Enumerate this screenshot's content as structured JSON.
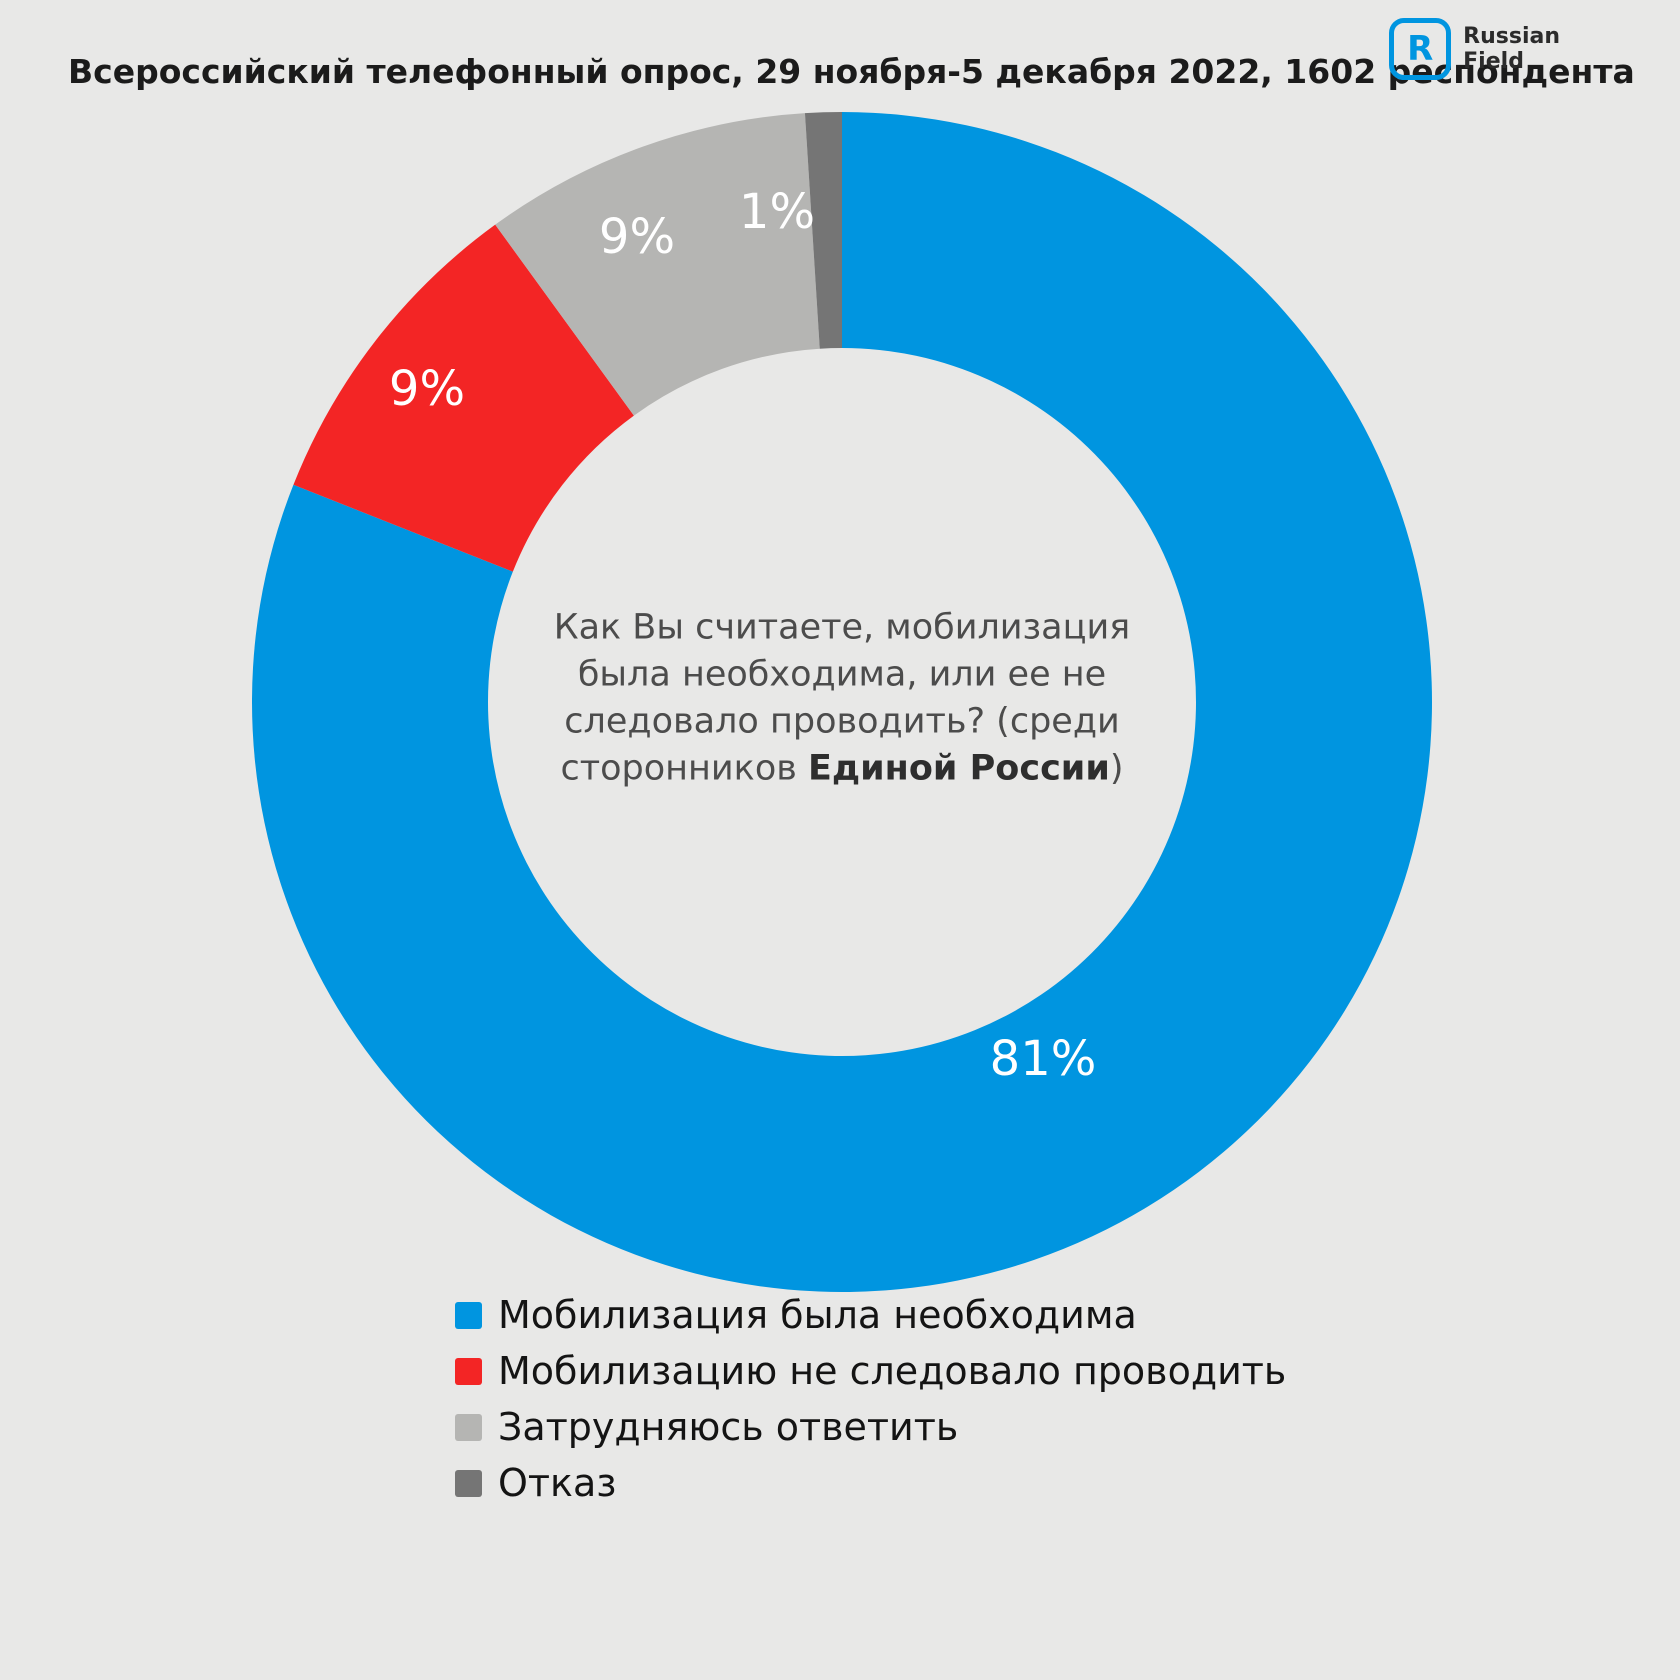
{
  "header": {
    "title": "Всероссийский телефонный опрос, 29 ноября-5 декабря 2022, 1602 респондента",
    "logo": {
      "letter": "R",
      "line1": "Russian",
      "line2": "Field",
      "brand_color": "#0095e0"
    }
  },
  "chart_data": {
    "type": "pie",
    "variant": "donut",
    "start_angle_deg": 0,
    "direction": "clockwise",
    "background_color": "#e8e8e7",
    "slices": [
      {
        "label": "Мобилизация была необходима",
        "value": 81,
        "display": "81%",
        "color": "#0095e0"
      },
      {
        "label": "Мобилизацию не следовало проводить",
        "value": 9,
        "display": "9%",
        "color": "#f32525"
      },
      {
        "label": "Затрудняюсь ответить",
        "value": 9,
        "display": "9%",
        "color": "#b5b5b3"
      },
      {
        "label": "Отказ",
        "value": 1,
        "display": "1%",
        "color": "#757575"
      }
    ],
    "center_question": {
      "line1": "Как Вы считаете, мобилизация",
      "line2": "была необходима, или ее не",
      "line3": "следовало проводить? (среди",
      "line4_prefix": "сторонников ",
      "line4_bold": "Единой России",
      "line4_suffix": ")"
    },
    "legend_position": "bottom-left"
  }
}
